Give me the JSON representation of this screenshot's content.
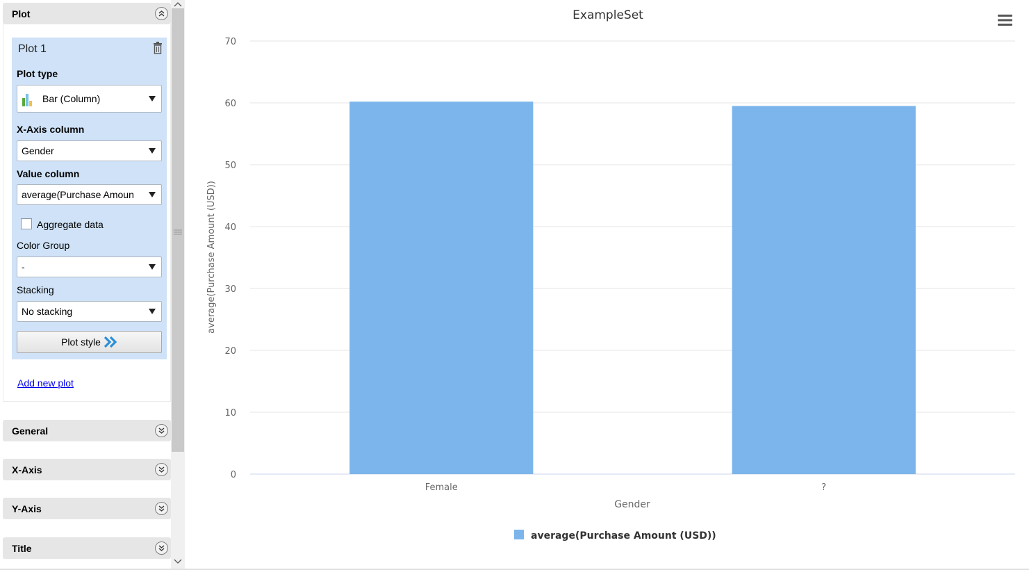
{
  "panel": {
    "sections": [
      {
        "key": "plot",
        "label": "Plot",
        "expanded": true
      },
      {
        "key": "general",
        "label": "General",
        "expanded": false
      },
      {
        "key": "x_axis",
        "label": "X-Axis",
        "expanded": false
      },
      {
        "key": "y_axis",
        "label": "Y-Axis",
        "expanded": false
      },
      {
        "key": "title",
        "label": "Title",
        "expanded": false
      }
    ],
    "plot_card": {
      "title": "Plot 1",
      "plot_type_label": "Plot type",
      "plot_type_value": "Bar (Column)",
      "x_axis_label": "X-Axis column",
      "x_axis_value": "Gender",
      "value_column_label": "Value column",
      "value_column_value": "average(Purchase Amoun",
      "aggregate_label": "Aggregate data",
      "aggregate_checked": false,
      "color_group_label": "Color Group",
      "color_group_value": "-",
      "stacking_label": "Stacking",
      "stacking_value": "No stacking",
      "plot_style_label": "Plot style"
    },
    "add_new_plot": "Add new plot"
  },
  "colors": {
    "bar": "#7cb5ec",
    "header_bg": "#e6e6e6",
    "plot_card_bg": "#cfe2f7",
    "link": "#0000ee",
    "accent_arrow": "#2b8fd6"
  },
  "chart_data": {
    "type": "bar",
    "title": "ExampleSet",
    "categories": [
      "Female",
      "?"
    ],
    "series": [
      {
        "name": "average(Purchase Amount (USD))",
        "values": [
          60.2,
          59.5
        ]
      }
    ],
    "xlabel": "Gender",
    "ylabel": "average(Purchase Amount (USD))",
    "ylim": [
      0,
      70
    ],
    "yticks": [
      0,
      10,
      20,
      30,
      40,
      50,
      60,
      70
    ],
    "grid": true,
    "legend": "bottom-center"
  }
}
